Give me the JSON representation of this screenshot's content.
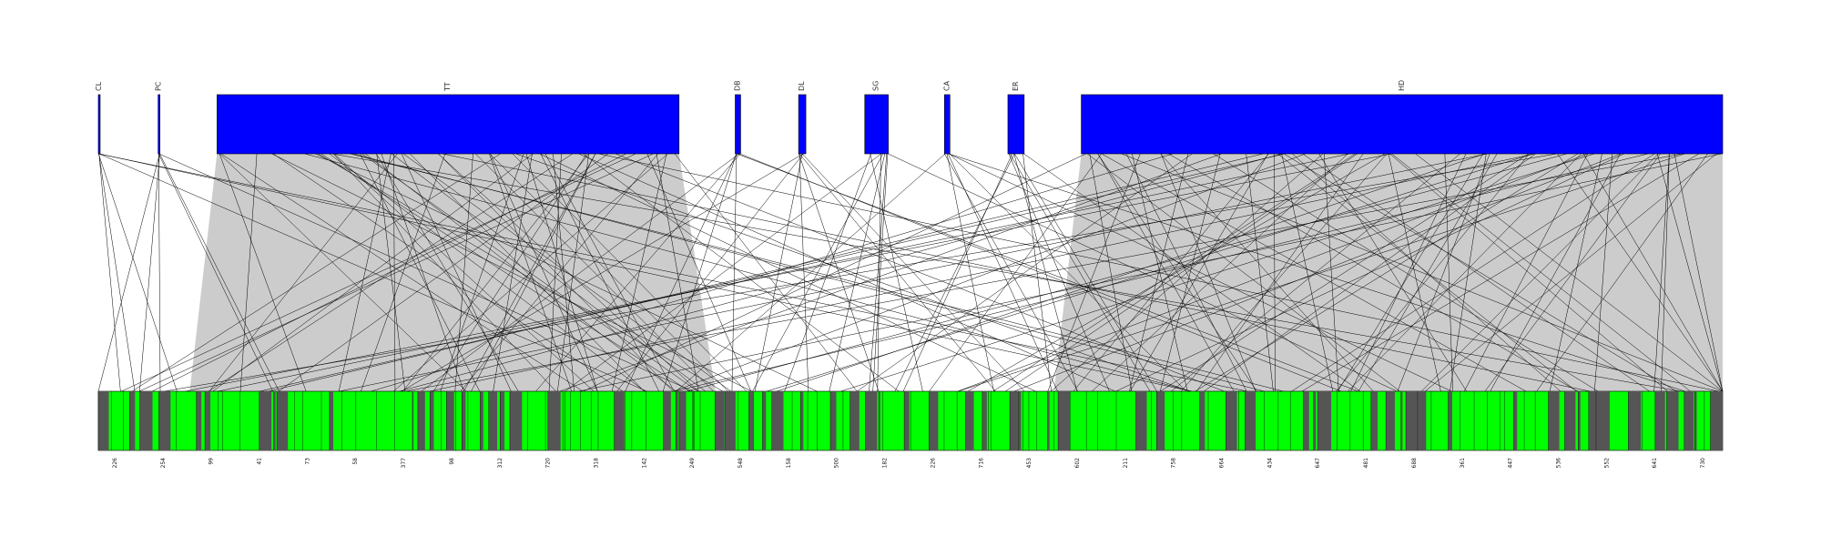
{
  "colors": {
    "top_block": "#0000ff",
    "bottom_block": "#00ff00",
    "bottom_dark": "#555555",
    "ribbon": "#cccccc",
    "link": "#000000"
  },
  "top_blocks": [
    {
      "label": "CL",
      "start": 0,
      "size": 1
    },
    {
      "label": "PC",
      "start": 66,
      "size": 2
    },
    {
      "label": "TT",
      "start": 131,
      "size": 510
    },
    {
      "label": "DB",
      "start": 703,
      "size": 6
    },
    {
      "label": "DL",
      "start": 773,
      "size": 8
    },
    {
      "label": "SG",
      "start": 846,
      "size": 26
    },
    {
      "label": "CA",
      "start": 934,
      "size": 6
    },
    {
      "label": "ER",
      "start": 1004,
      "size": 18
    },
    {
      "label": "HD",
      "start": 1085,
      "size": 708
    }
  ],
  "bottom_axis": {
    "min": 0,
    "max": 1793
  },
  "bottom_tick_labels": [
    "226",
    "254",
    "99",
    "41",
    "73",
    "58",
    "377",
    "98",
    "312",
    "720",
    "318",
    "142",
    "249",
    "548",
    "158",
    "500",
    "182",
    "226",
    "716",
    "453",
    "602",
    "211",
    "758",
    "664",
    "434",
    "647",
    "481",
    "688",
    "361",
    "447",
    "536",
    "552",
    "641",
    "730"
  ]
}
